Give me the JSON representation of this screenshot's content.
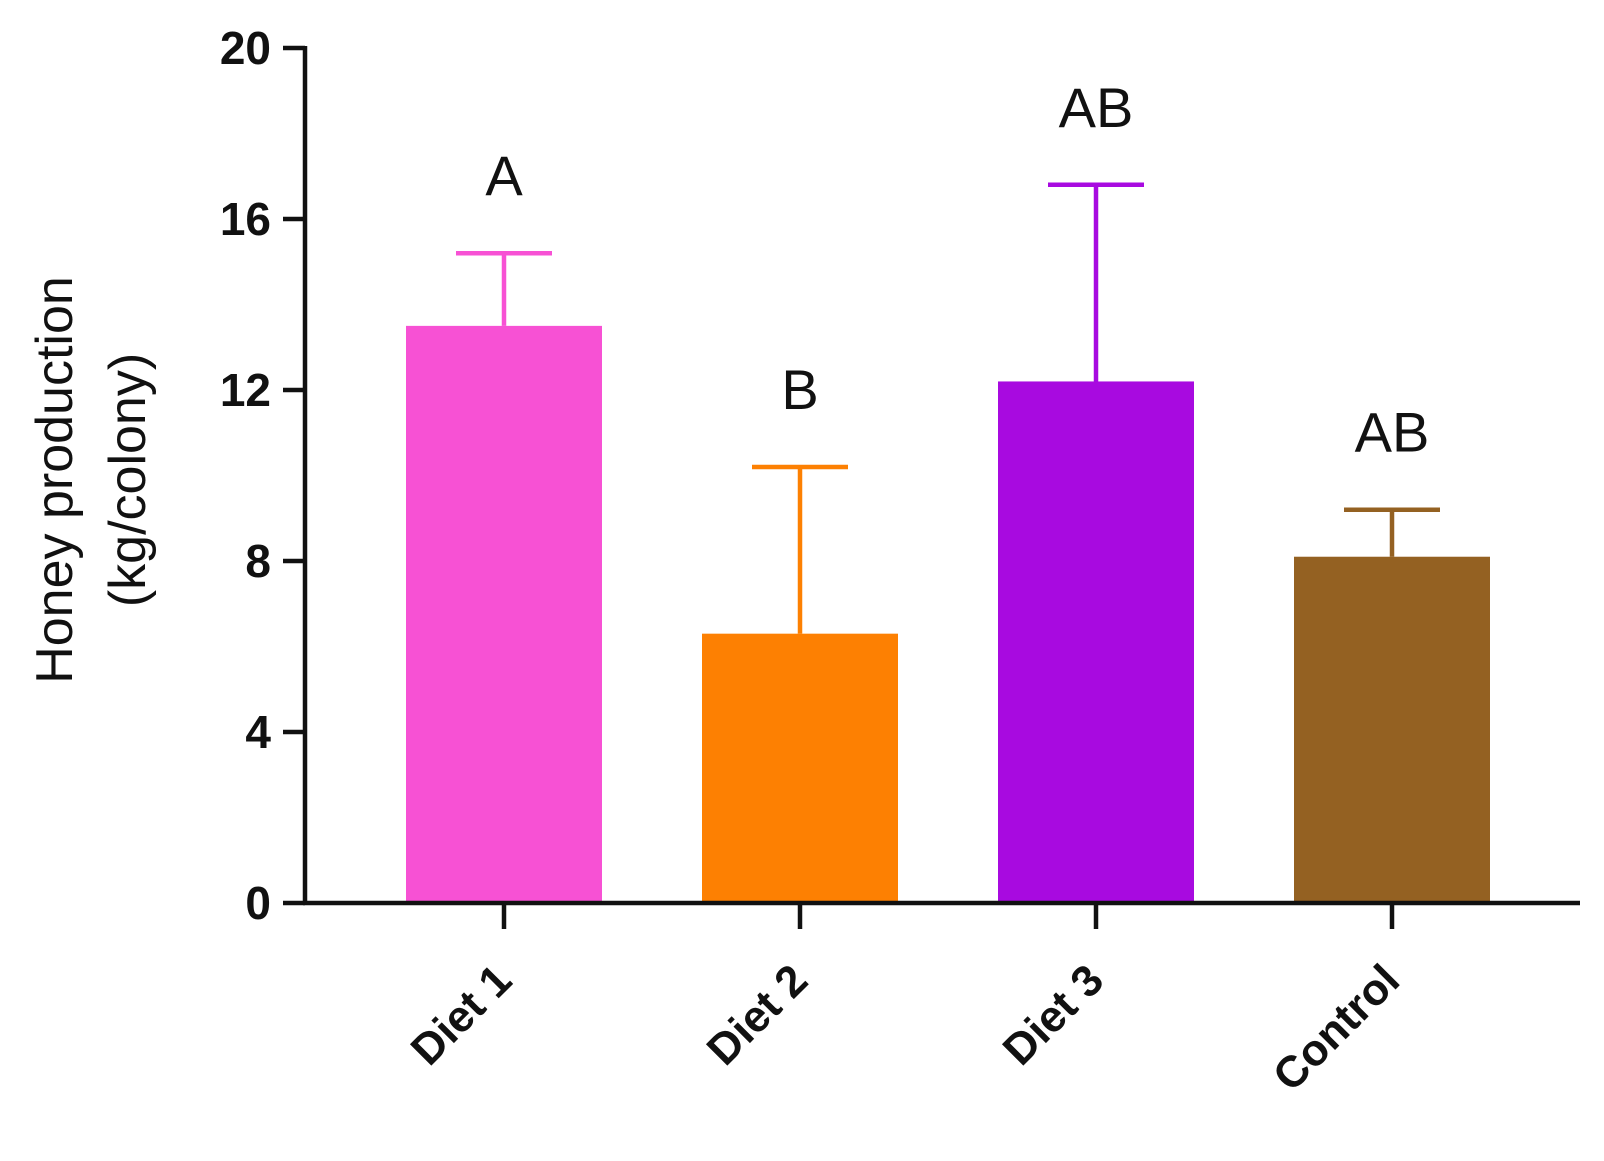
{
  "chart_data": {
    "type": "bar",
    "title": "",
    "xlabel": "",
    "ylabel_lines": [
      "Honey production",
      "(kg/colony)"
    ],
    "ylim": [
      0,
      20
    ],
    "yticks": [
      "0",
      "4",
      "8",
      "12",
      "16",
      "20"
    ],
    "categories": [
      "Diet 1",
      "Diet 2",
      "Diet 3",
      "Control"
    ],
    "values": [
      13.5,
      6.3,
      12.2,
      8.1
    ],
    "error_upper": [
      15.2,
      10.2,
      16.8,
      9.2
    ],
    "significance": [
      "A",
      "B",
      "AB",
      "AB"
    ],
    "colors": [
      "#f751d4",
      "#fd8002",
      "#a80ae0",
      "#946122"
    ]
  }
}
